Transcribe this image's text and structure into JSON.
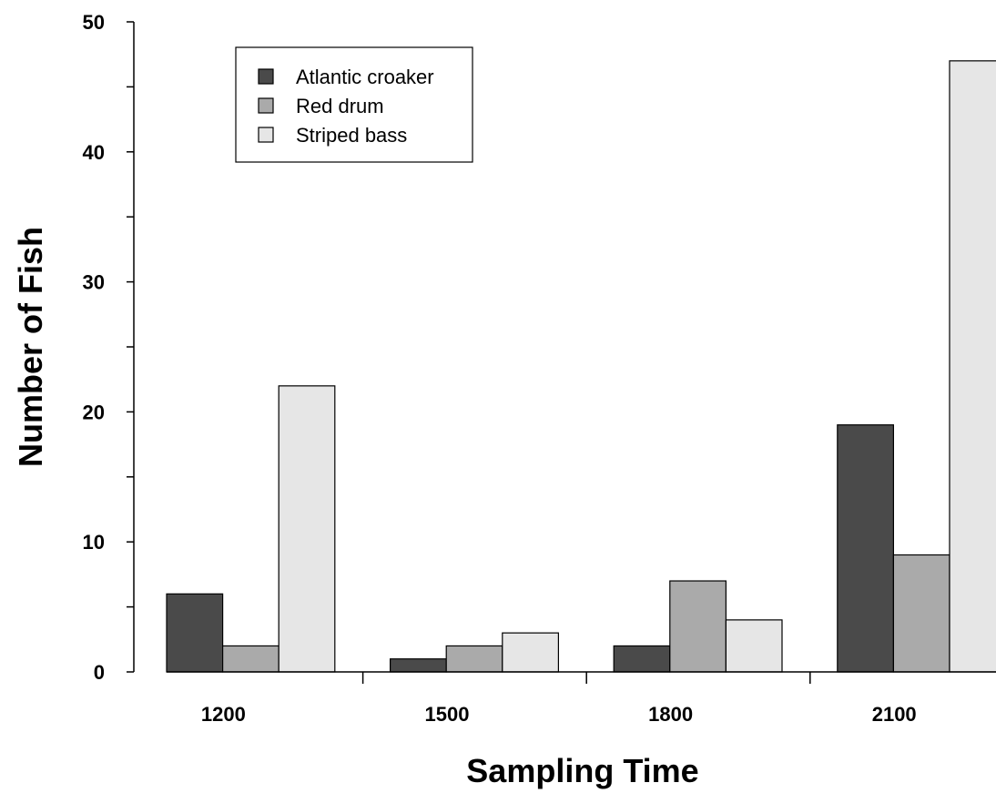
{
  "chart_data": {
    "type": "bar",
    "title": "",
    "xlabel": "Sampling Time",
    "ylabel": "Number of Fish",
    "categories": [
      "1200",
      "1500",
      "1800",
      "2100"
    ],
    "series": [
      {
        "name": "Atlantic croaker",
        "values": [
          6,
          1,
          2,
          19
        ],
        "color": "#4a4a4a"
      },
      {
        "name": "Red drum",
        "values": [
          2,
          2,
          7,
          9
        ],
        "color": "#aaaaaa"
      },
      {
        "name": "Striped bass",
        "values": [
          22,
          3,
          4,
          47
        ],
        "color": "#e6e6e6"
      }
    ],
    "ylim": [
      0,
      50
    ],
    "yticks": [
      0,
      10,
      20,
      30,
      40,
      50
    ],
    "grid": false,
    "legend_position": "top-left"
  }
}
